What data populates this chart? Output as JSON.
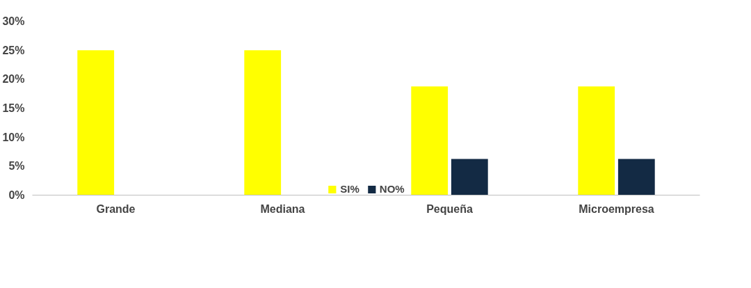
{
  "chart_data": {
    "type": "bar",
    "categories": [
      "Grande",
      "Mediana",
      "Pequeña",
      "Microempresa"
    ],
    "series": [
      {
        "name": "SI%",
        "color": "#ffff00",
        "values": [
          25,
          25,
          18.75,
          18.75
        ]
      },
      {
        "name": "NO%",
        "color": "#132a44",
        "values": [
          0,
          0,
          6.25,
          6.25
        ]
      }
    ],
    "ylim": [
      0,
      30
    ],
    "yticks": [
      {
        "value": 0,
        "label": "0%"
      },
      {
        "value": 5,
        "label": "5%"
      },
      {
        "value": 10,
        "label": "10%"
      },
      {
        "value": 15,
        "label": "15%"
      },
      {
        "value": 20,
        "label": "20%"
      },
      {
        "value": 25,
        "label": "25%"
      },
      {
        "value": 30,
        "label": "30%"
      }
    ],
    "grid": false,
    "legend": "bottom"
  }
}
